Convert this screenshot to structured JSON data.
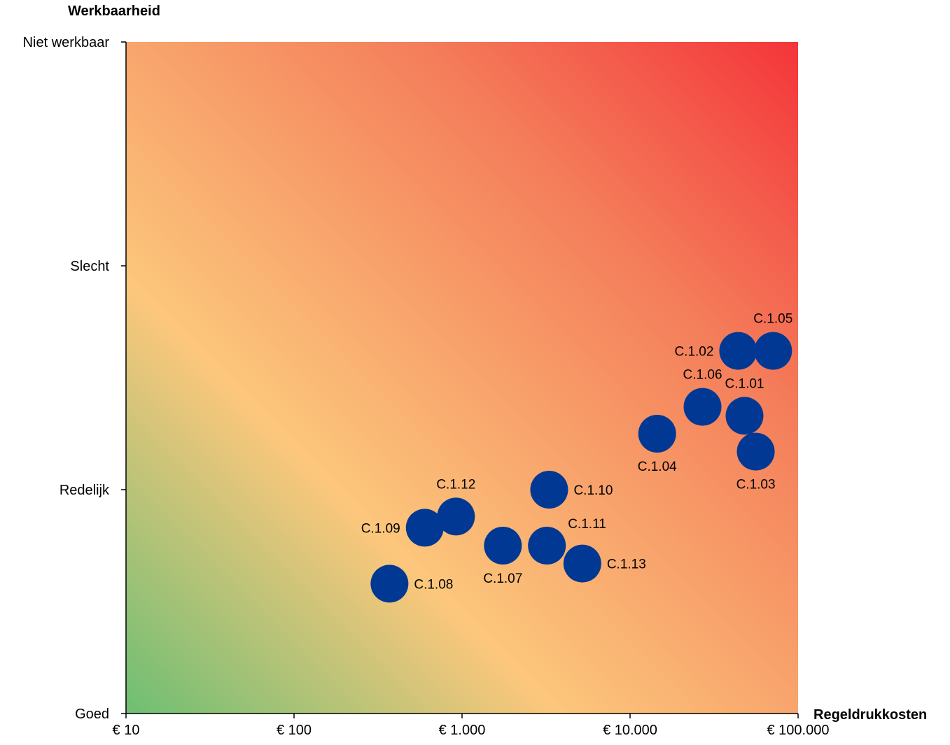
{
  "chart_data": {
    "type": "scatter",
    "title": "",
    "xlabel": "Regeldrukkosten",
    "ylabel": "Werkbaarheid",
    "x_scale": "log",
    "xlim": [
      10,
      100000
    ],
    "ylim": [
      0,
      3
    ],
    "x_ticks": [
      {
        "value": 10,
        "label": "€ 10"
      },
      {
        "value": 100,
        "label": "€ 100"
      },
      {
        "value": 1000,
        "label": "€ 1.000"
      },
      {
        "value": 10000,
        "label": "€ 10.000"
      },
      {
        "value": 100000,
        "label": "€ 100.000"
      }
    ],
    "y_ticks": [
      {
        "value": 0,
        "label": "Goed"
      },
      {
        "value": 1,
        "label": "Redelijk"
      },
      {
        "value": 2,
        "label": "Slecht"
      },
      {
        "value": 3,
        "label": "Niet werkbaar"
      }
    ],
    "background": "diagonal gradient from green (bottom-left) through light orange to red (top-right)",
    "background_colors": [
      "#6dbf73",
      "#fcc77c",
      "#f47d5a",
      "#f4353a"
    ],
    "marker_color": "#003893",
    "grid": false,
    "points": [
      {
        "label": "C.1.01",
        "x": 48000,
        "y": 1.33,
        "label_pos": "top"
      },
      {
        "label": "C.1.02",
        "x": 44000,
        "y": 1.62,
        "label_pos": "left"
      },
      {
        "label": "C.1.03",
        "x": 56000,
        "y": 1.17,
        "label_pos": "bottom"
      },
      {
        "label": "C.1.04",
        "x": 14500,
        "y": 1.25,
        "label_pos": "bottom"
      },
      {
        "label": "C.1.05",
        "x": 71000,
        "y": 1.62,
        "label_pos": "top"
      },
      {
        "label": "C.1.06",
        "x": 27000,
        "y": 1.37,
        "label_pos": "top"
      },
      {
        "label": "C.1.07",
        "x": 1750,
        "y": 0.75,
        "label_pos": "bottom"
      },
      {
        "label": "C.1.08",
        "x": 370,
        "y": 0.58,
        "label_pos": "right"
      },
      {
        "label": "C.1.09",
        "x": 600,
        "y": 0.83,
        "label_pos": "left"
      },
      {
        "label": "C.1.10",
        "x": 3300,
        "y": 1.0,
        "label_pos": "right"
      },
      {
        "label": "C.1.11",
        "x": 3200,
        "y": 0.75,
        "label_pos": "top-right"
      },
      {
        "label": "C.1.12",
        "x": 920,
        "y": 0.88,
        "label_pos": "top"
      },
      {
        "label": "C.1.13",
        "x": 5200,
        "y": 0.67,
        "label_pos": "right"
      }
    ]
  }
}
